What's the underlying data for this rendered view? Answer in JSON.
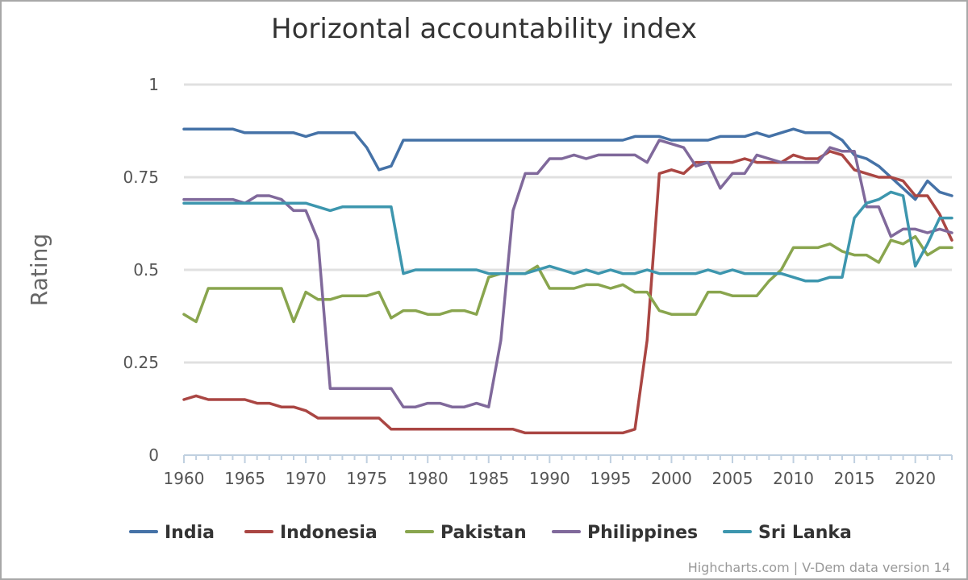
{
  "chart_data": {
    "type": "line",
    "title": "Horizontal accountability index",
    "xlabel": "",
    "ylabel": "Rating",
    "xlim": [
      1960,
      2023
    ],
    "ylim": [
      0,
      1
    ],
    "y_ticks": [
      0,
      0.25,
      0.5,
      0.75,
      1
    ],
    "y_tick_labels": [
      "0",
      "0.25",
      "0.5",
      "0.75",
      "1"
    ],
    "x_ticks": [
      1960,
      1965,
      1970,
      1975,
      1980,
      1985,
      1990,
      1995,
      2000,
      2005,
      2010,
      2015,
      2020
    ],
    "x_tick_labels": [
      "1960",
      "1965",
      "1970",
      "1975",
      "1980",
      "1985",
      "1990",
      "1995",
      "2000",
      "2005",
      "2010",
      "2015",
      "2020"
    ],
    "grid": true,
    "legend_position": "bottom",
    "x": [
      1960,
      1961,
      1962,
      1963,
      1964,
      1965,
      1966,
      1967,
      1968,
      1969,
      1970,
      1971,
      1972,
      1973,
      1974,
      1975,
      1976,
      1977,
      1978,
      1979,
      1980,
      1981,
      1982,
      1983,
      1984,
      1985,
      1986,
      1987,
      1988,
      1989,
      1990,
      1991,
      1992,
      1993,
      1994,
      1995,
      1996,
      1997,
      1998,
      1999,
      2000,
      2001,
      2002,
      2003,
      2004,
      2005,
      2006,
      2007,
      2008,
      2009,
      2010,
      2011,
      2012,
      2013,
      2014,
      2015,
      2016,
      2017,
      2018,
      2019,
      2020,
      2021,
      2022,
      2023
    ],
    "series": [
      {
        "name": "India",
        "color": "#4572A7",
        "values": [
          0.88,
          0.88,
          0.88,
          0.88,
          0.88,
          0.87,
          0.87,
          0.87,
          0.87,
          0.87,
          0.86,
          0.87,
          0.87,
          0.87,
          0.87,
          0.83,
          0.77,
          0.78,
          0.85,
          0.85,
          0.85,
          0.85,
          0.85,
          0.85,
          0.85,
          0.85,
          0.85,
          0.85,
          0.85,
          0.85,
          0.85,
          0.85,
          0.85,
          0.85,
          0.85,
          0.85,
          0.85,
          0.86,
          0.86,
          0.86,
          0.85,
          0.85,
          0.85,
          0.85,
          0.86,
          0.86,
          0.86,
          0.87,
          0.86,
          0.87,
          0.88,
          0.87,
          0.87,
          0.87,
          0.85,
          0.81,
          0.8,
          0.78,
          0.75,
          0.72,
          0.69,
          0.74,
          0.71,
          0.7
        ]
      },
      {
        "name": "Indonesia",
        "color": "#AA4643",
        "values": [
          0.15,
          0.16,
          0.15,
          0.15,
          0.15,
          0.15,
          0.14,
          0.14,
          0.13,
          0.13,
          0.12,
          0.1,
          0.1,
          0.1,
          0.1,
          0.1,
          0.1,
          0.07,
          0.07,
          0.07,
          0.07,
          0.07,
          0.07,
          0.07,
          0.07,
          0.07,
          0.07,
          0.07,
          0.06,
          0.06,
          0.06,
          0.06,
          0.06,
          0.06,
          0.06,
          0.06,
          0.06,
          0.07,
          0.31,
          0.76,
          0.77,
          0.76,
          0.79,
          0.79,
          0.79,
          0.79,
          0.8,
          0.79,
          0.79,
          0.79,
          0.81,
          0.8,
          0.8,
          0.82,
          0.81,
          0.77,
          0.76,
          0.75,
          0.75,
          0.74,
          0.7,
          0.7,
          0.65,
          0.58
        ]
      },
      {
        "name": "Pakistan",
        "color": "#89A54E",
        "values": [
          0.38,
          0.36,
          0.45,
          0.45,
          0.45,
          0.45,
          0.45,
          0.45,
          0.45,
          0.36,
          0.44,
          0.42,
          0.42,
          0.43,
          0.43,
          0.43,
          0.44,
          0.37,
          0.39,
          0.39,
          0.38,
          0.38,
          0.39,
          0.39,
          0.38,
          0.48,
          0.49,
          0.49,
          0.49,
          0.51,
          0.45,
          0.45,
          0.45,
          0.46,
          0.46,
          0.45,
          0.46,
          0.44,
          0.44,
          0.39,
          0.38,
          0.38,
          0.38,
          0.44,
          0.44,
          0.43,
          0.43,
          0.43,
          0.47,
          0.5,
          0.56,
          0.56,
          0.56,
          0.57,
          0.55,
          0.54,
          0.54,
          0.52,
          0.58,
          0.57,
          0.59,
          0.54,
          0.56,
          0.56
        ]
      },
      {
        "name": "Philippines",
        "color": "#80699B",
        "values": [
          0.69,
          0.69,
          0.69,
          0.69,
          0.69,
          0.68,
          0.7,
          0.7,
          0.69,
          0.66,
          0.66,
          0.58,
          0.18,
          0.18,
          0.18,
          0.18,
          0.18,
          0.18,
          0.13,
          0.13,
          0.14,
          0.14,
          0.13,
          0.13,
          0.14,
          0.13,
          0.31,
          0.66,
          0.76,
          0.76,
          0.8,
          0.8,
          0.81,
          0.8,
          0.81,
          0.81,
          0.81,
          0.81,
          0.79,
          0.85,
          0.84,
          0.83,
          0.78,
          0.79,
          0.72,
          0.76,
          0.76,
          0.81,
          0.8,
          0.79,
          0.79,
          0.79,
          0.79,
          0.83,
          0.82,
          0.82,
          0.67,
          0.67,
          0.59,
          0.61,
          0.61,
          0.6,
          0.61,
          0.6
        ]
      },
      {
        "name": "Sri Lanka",
        "color": "#3D96AE",
        "values": [
          0.68,
          0.68,
          0.68,
          0.68,
          0.68,
          0.68,
          0.68,
          0.68,
          0.68,
          0.68,
          0.68,
          0.67,
          0.66,
          0.67,
          0.67,
          0.67,
          0.67,
          0.67,
          0.49,
          0.5,
          0.5,
          0.5,
          0.5,
          0.5,
          0.5,
          0.49,
          0.49,
          0.49,
          0.49,
          0.5,
          0.51,
          0.5,
          0.49,
          0.5,
          0.49,
          0.5,
          0.49,
          0.49,
          0.5,
          0.49,
          0.49,
          0.49,
          0.49,
          0.5,
          0.49,
          0.5,
          0.49,
          0.49,
          0.49,
          0.49,
          0.48,
          0.47,
          0.47,
          0.48,
          0.48,
          0.64,
          0.68,
          0.69,
          0.71,
          0.7,
          0.51,
          0.57,
          0.64,
          0.64
        ]
      }
    ]
  },
  "credits": "Highcharts.com | V-Dem data version 14"
}
